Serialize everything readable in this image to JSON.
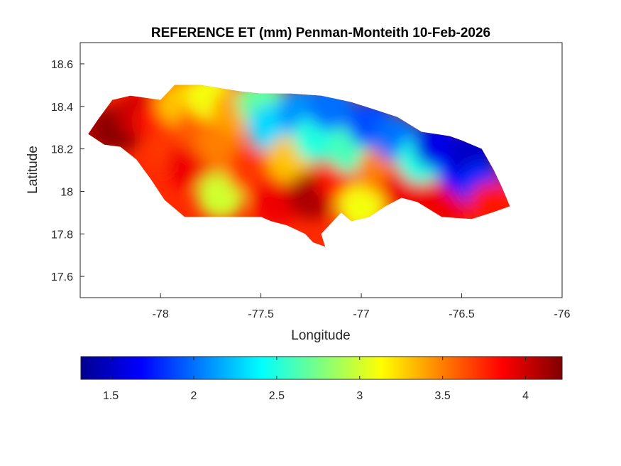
{
  "chart_data": {
    "type": "heatmap",
    "title": "REFERENCE ET (mm) Penman-Monteith 10-Feb-2026",
    "xlabel": "Longitude",
    "ylabel": "Latitude",
    "xlim": [
      -78.4,
      -76
    ],
    "ylim": [
      17.5,
      18.7
    ],
    "x_ticks": [
      -78,
      -77.5,
      -77,
      -76.5,
      -76
    ],
    "x_tick_labels": [
      "-78",
      "-77.5",
      "-77",
      "-76.5",
      "-76"
    ],
    "y_ticks": [
      17.6,
      17.8,
      18,
      18.2,
      18.4,
      18.6
    ],
    "y_tick_labels": [
      "17.6",
      "17.8",
      "18",
      "18.2",
      "18.4",
      "18.6"
    ],
    "grid": false,
    "colormap": "jet",
    "colorbar": {
      "orientation": "horizontal",
      "placement": "below",
      "range": [
        1.32,
        4.22
      ],
      "ticks": [
        1.5,
        2,
        2.5,
        3,
        3.5,
        4
      ],
      "tick_labels": [
        "1.5",
        "2",
        "2.5",
        "3",
        "3.5",
        "4"
      ]
    },
    "region_outline": [
      [
        -78.36,
        18.27
      ],
      [
        -78.31,
        18.34
      ],
      [
        -78.24,
        18.43
      ],
      [
        -78.15,
        18.45
      ],
      [
        -78.0,
        18.43
      ],
      [
        -77.93,
        18.5
      ],
      [
        -77.8,
        18.5
      ],
      [
        -77.6,
        18.47
      ],
      [
        -77.5,
        18.46
      ],
      [
        -77.35,
        18.46
      ],
      [
        -77.2,
        18.45
      ],
      [
        -77.05,
        18.42
      ],
      [
        -76.95,
        18.39
      ],
      [
        -76.82,
        18.35
      ],
      [
        -76.7,
        18.28
      ],
      [
        -76.56,
        18.26
      ],
      [
        -76.5,
        18.24
      ],
      [
        -76.4,
        18.2
      ],
      [
        -76.34,
        18.1
      ],
      [
        -76.3,
        18.02
      ],
      [
        -76.26,
        17.93
      ],
      [
        -76.35,
        17.9
      ],
      [
        -76.45,
        17.87
      ],
      [
        -76.6,
        17.88
      ],
      [
        -76.72,
        17.95
      ],
      [
        -76.8,
        17.97
      ],
      [
        -76.88,
        17.93
      ],
      [
        -76.96,
        17.88
      ],
      [
        -77.05,
        17.86
      ],
      [
        -77.1,
        17.9
      ],
      [
        -77.15,
        17.85
      ],
      [
        -77.2,
        17.8
      ],
      [
        -77.18,
        17.74
      ],
      [
        -77.24,
        17.76
      ],
      [
        -77.28,
        17.8
      ],
      [
        -77.37,
        17.84
      ],
      [
        -77.45,
        17.86
      ],
      [
        -77.5,
        17.88
      ],
      [
        -77.7,
        17.88
      ],
      [
        -77.75,
        17.88
      ],
      [
        -77.88,
        17.88
      ],
      [
        -77.98,
        17.96
      ],
      [
        -78.05,
        18.06
      ],
      [
        -78.12,
        18.15
      ],
      [
        -78.2,
        18.21
      ],
      [
        -78.28,
        18.22
      ],
      [
        -78.36,
        18.27
      ]
    ],
    "values": [
      {
        "lon": -78.3,
        "lat": 18.28,
        "value": 4.1
      },
      {
        "lon": -78.2,
        "lat": 18.3,
        "value": 4.2
      },
      {
        "lon": -78.1,
        "lat": 18.36,
        "value": 4.0
      },
      {
        "lon": -78.0,
        "lat": 18.33,
        "value": 3.8
      },
      {
        "lon": -77.95,
        "lat": 18.2,
        "value": 3.7
      },
      {
        "lon": -77.9,
        "lat": 18.42,
        "value": 3.3
      },
      {
        "lon": -77.85,
        "lat": 18.12,
        "value": 3.9
      },
      {
        "lon": -77.8,
        "lat": 18.3,
        "value": 3.6
      },
      {
        "lon": -77.75,
        "lat": 18.45,
        "value": 3.1
      },
      {
        "lon": -77.7,
        "lat": 18.22,
        "value": 3.5
      },
      {
        "lon": -77.7,
        "lat": 17.98,
        "value": 3.0
      },
      {
        "lon": -77.62,
        "lat": 18.38,
        "value": 3.4
      },
      {
        "lon": -77.55,
        "lat": 18.1,
        "value": 3.7
      },
      {
        "lon": -77.5,
        "lat": 18.42,
        "value": 2.7
      },
      {
        "lon": -77.45,
        "lat": 18.3,
        "value": 2.3
      },
      {
        "lon": -77.42,
        "lat": 17.95,
        "value": 3.9
      },
      {
        "lon": -77.35,
        "lat": 18.15,
        "value": 3.3
      },
      {
        "lon": -77.3,
        "lat": 18.38,
        "value": 2.1
      },
      {
        "lon": -77.25,
        "lat": 17.98,
        "value": 4.1
      },
      {
        "lon": -77.22,
        "lat": 18.25,
        "value": 2.5
      },
      {
        "lon": -77.15,
        "lat": 18.4,
        "value": 2.0
      },
      {
        "lon": -77.1,
        "lat": 18.05,
        "value": 3.8
      },
      {
        "lon": -77.05,
        "lat": 18.2,
        "value": 2.6
      },
      {
        "lon": -77.0,
        "lat": 17.92,
        "value": 3.1
      },
      {
        "lon": -76.95,
        "lat": 18.32,
        "value": 1.9
      },
      {
        "lon": -76.9,
        "lat": 18.1,
        "value": 3.5
      },
      {
        "lon": -76.82,
        "lat": 18.25,
        "value": 2.0
      },
      {
        "lon": -76.78,
        "lat": 18.0,
        "value": 3.9
      },
      {
        "lon": -76.7,
        "lat": 18.15,
        "value": 2.5
      },
      {
        "lon": -76.62,
        "lat": 18.22,
        "value": 1.6
      },
      {
        "lon": -76.58,
        "lat": 17.95,
        "value": 3.9
      },
      {
        "lon": -76.5,
        "lat": 18.1,
        "value": 1.7
      },
      {
        "lon": -76.45,
        "lat": 18.18,
        "value": 1.5
      },
      {
        "lon": -76.4,
        "lat": 18.02,
        "value": 1.8
      },
      {
        "lon": -76.35,
        "lat": 17.93,
        "value": 3.8
      }
    ]
  }
}
